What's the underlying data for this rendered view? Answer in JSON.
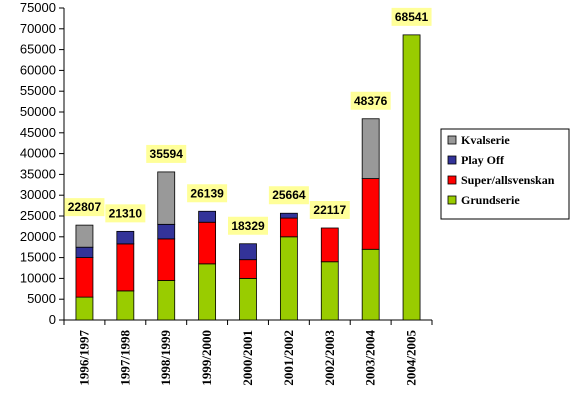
{
  "chart_data": {
    "type": "bar",
    "stacked": true,
    "categories": [
      "1996/1997",
      "1997/1998",
      "1998/1999",
      "1999/2000",
      "2000/2001",
      "2001/2002",
      "2002/2003",
      "2003/2004",
      "2004/2005"
    ],
    "series": [
      {
        "name": "Grundserie",
        "color": "#99cc00",
        "values": [
          5500,
          7000,
          9500,
          13500,
          10000,
          20000,
          14000,
          17000,
          68541
        ]
      },
      {
        "name": "Super/allsvenskan",
        "color": "#ff0000",
        "values": [
          9500,
          11300,
          10000,
          10000,
          4500,
          4500,
          8117,
          17000,
          0
        ]
      },
      {
        "name": "Play Off",
        "color": "#333399",
        "values": [
          2500,
          3010,
          3500,
          2639,
          3829,
          1164,
          0,
          0,
          0
        ]
      },
      {
        "name": "Kvalserie",
        "color": "#999999",
        "values": [
          5307,
          0,
          12594,
          0,
          0,
          0,
          0,
          14376,
          0
        ]
      }
    ],
    "totals": [
      "22807",
      "21310",
      "35594",
      "26139",
      "18329",
      "25664",
      "22117",
      "48376",
      "68541"
    ],
    "ylim": [
      0,
      75000
    ],
    "yticks": [
      "0",
      "5000",
      "10000",
      "15000",
      "20000",
      "25000",
      "30000",
      "35000",
      "40000",
      "45000",
      "50000",
      "55000",
      "60000",
      "65000",
      "70000",
      "75000"
    ],
    "legend_position": "right",
    "label_background": "#ffff99"
  }
}
